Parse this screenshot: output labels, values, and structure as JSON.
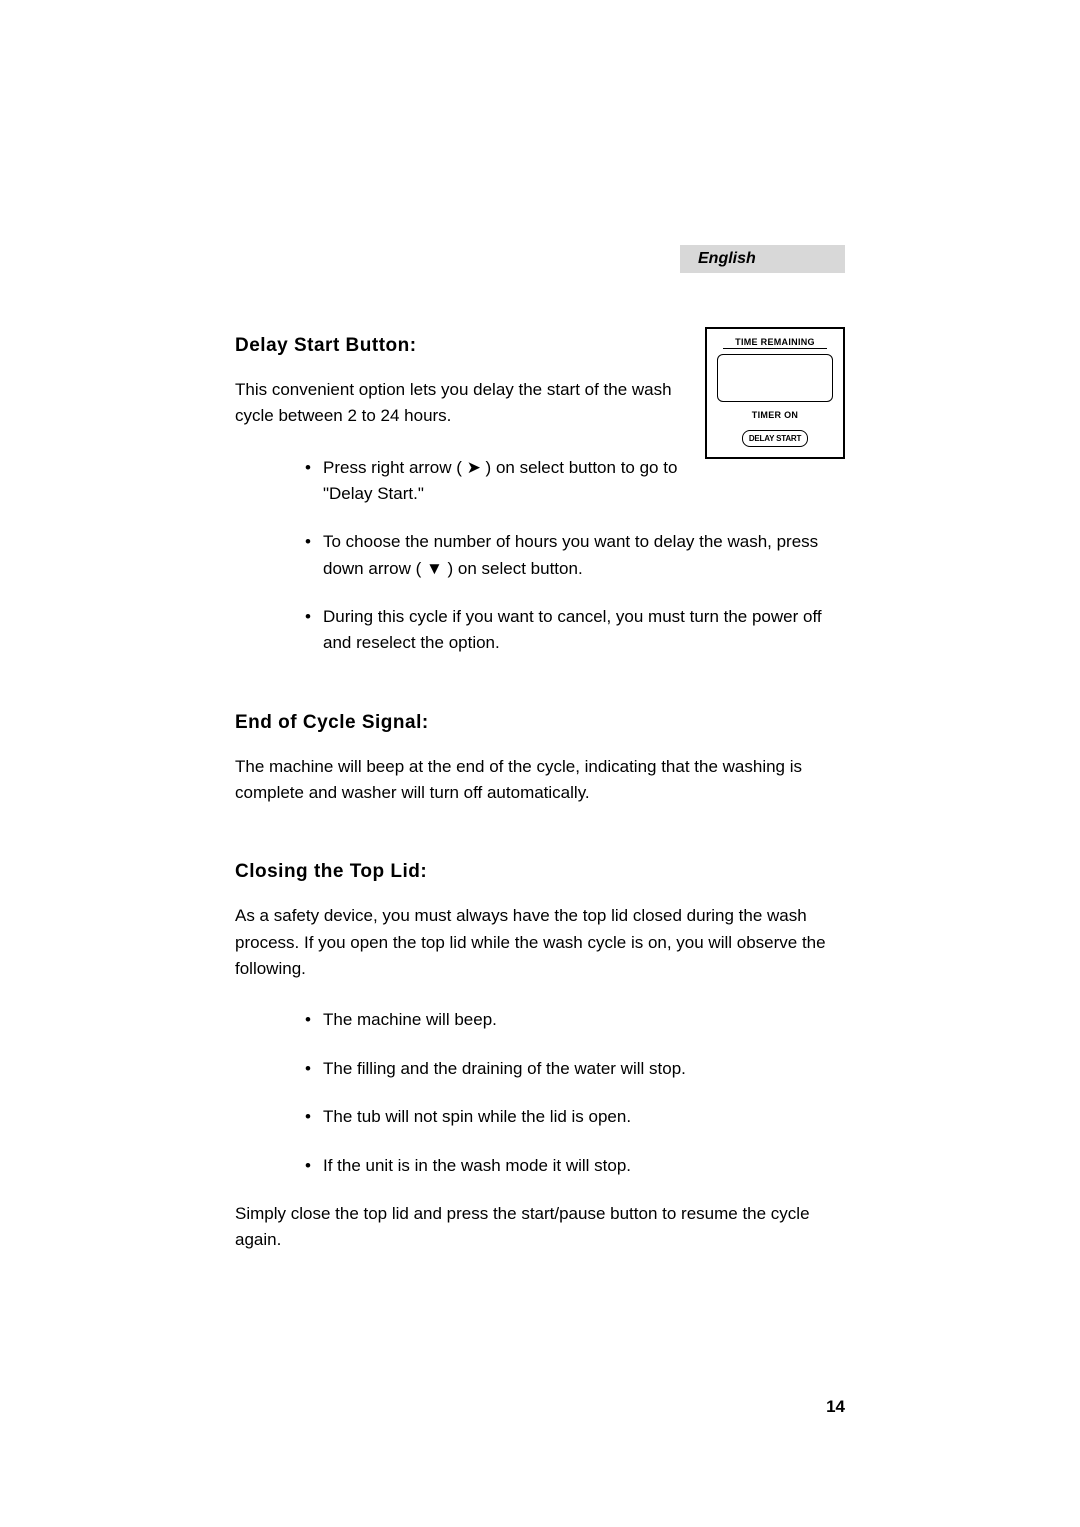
{
  "header": {
    "language": "English"
  },
  "sections": {
    "delay_start": {
      "heading": "Delay Start Button:",
      "intro": "This convenient option lets you delay the start of the wash cycle between 2 to 24 hours.",
      "bullets": [
        "Press right arrow ( ➤ ) on select button to go to \"Delay Start.\"",
        "To choose the number of hours you want to delay the wash, press down arrow ( ▼ ) on select button.",
        "During this cycle if you want to cancel, you must turn the power off and reselect the option."
      ],
      "diagram": {
        "label_top": "TIME REMAINING",
        "label_mid": "TIMER ON",
        "button_label": "DELAY START"
      }
    },
    "end_of_cycle": {
      "heading": "End of Cycle Signal:",
      "intro": "The machine will beep at the end of the cycle, indicating that the washing is complete and washer will turn off automatically."
    },
    "closing_lid": {
      "heading": "Closing the Top Lid:",
      "intro": "As a safety device, you must always have the top lid closed during the wash process. If you open the top lid while the wash cycle is on, you will observe the following.",
      "bullets": [
        "The machine will beep.",
        "The filling and the draining of the water will stop.",
        "The tub will not spin while the lid is open.",
        "If the unit is in the wash mode it will stop."
      ],
      "outro": "Simply close the top lid and press the start/pause button to resume the cycle again."
    }
  },
  "page_number": "14",
  "colors": {
    "tag_bg": "#d8d8d8",
    "text": "#000000",
    "bg": "#ffffff"
  },
  "typography": {
    "body_fontsize": 17,
    "heading_fontsize": 19,
    "font_family": "Arial"
  }
}
